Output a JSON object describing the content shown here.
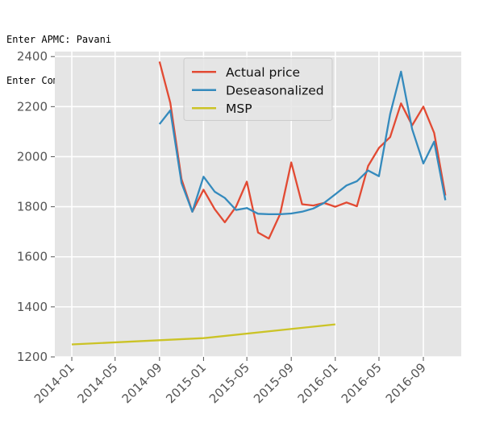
{
  "console": {
    "prompt_apmc": "Enter APMC: Pavani",
    "prompt_commodity": "Enter Commodity within that APMC: paddy-unhusked"
  },
  "chart_data": {
    "type": "line",
    "style": "ggplot",
    "title": "",
    "xlabel": "",
    "ylabel": "",
    "xlim": [
      "2013-11-15",
      "2016-12-15"
    ],
    "ylim": [
      1200,
      2420
    ],
    "x_ticks": [
      "2014-01",
      "2014-05",
      "2014-09",
      "2015-01",
      "2015-05",
      "2015-09",
      "2016-01",
      "2016-05",
      "2016-09"
    ],
    "y_ticks": [
      1200,
      1400,
      1600,
      1800,
      2000,
      2200,
      2400
    ],
    "grid": true,
    "legend_position": "upper center",
    "series": [
      {
        "name": "Actual price",
        "color": "#E24A33",
        "points": [
          [
            "2014-09",
            2380
          ],
          [
            "2014-10",
            2215
          ],
          [
            "2014-11",
            1910
          ],
          [
            "2014-12",
            1780
          ],
          [
            "2015-01",
            1868
          ],
          [
            "2015-02",
            1790
          ],
          [
            "2015-03",
            1738
          ],
          [
            "2015-04",
            1800
          ],
          [
            "2015-05",
            1900
          ],
          [
            "2015-06",
            1697
          ],
          [
            "2015-07",
            1673
          ],
          [
            "2015-08",
            1770
          ],
          [
            "2015-09",
            1977
          ],
          [
            "2015-10",
            1810
          ],
          [
            "2015-11",
            1805
          ],
          [
            "2015-12",
            1815
          ],
          [
            "2016-01",
            1800
          ],
          [
            "2016-02",
            1817
          ],
          [
            "2016-03",
            1802
          ],
          [
            "2016-04",
            1963
          ],
          [
            "2016-05",
            2035
          ],
          [
            "2016-06",
            2078
          ],
          [
            "2016-07",
            2213
          ],
          [
            "2016-08",
            2125
          ],
          [
            "2016-09",
            2200
          ],
          [
            "2016-10",
            2095
          ],
          [
            "2016-11",
            1845
          ]
        ]
      },
      {
        "name": "Deseasonalized",
        "color": "#348ABD",
        "points": [
          [
            "2014-09",
            2130
          ],
          [
            "2014-10",
            2185
          ],
          [
            "2014-11",
            1895
          ],
          [
            "2014-12",
            1780
          ],
          [
            "2015-01",
            1920
          ],
          [
            "2015-02",
            1860
          ],
          [
            "2015-03",
            1835
          ],
          [
            "2015-04",
            1787
          ],
          [
            "2015-05",
            1795
          ],
          [
            "2015-06",
            1772
          ],
          [
            "2015-07",
            1770
          ],
          [
            "2015-08",
            1770
          ],
          [
            "2015-09",
            1773
          ],
          [
            "2015-10",
            1780
          ],
          [
            "2015-11",
            1793
          ],
          [
            "2015-12",
            1815
          ],
          [
            "2016-01",
            1850
          ],
          [
            "2016-02",
            1885
          ],
          [
            "2016-03",
            1902
          ],
          [
            "2016-04",
            1945
          ],
          [
            "2016-05",
            1922
          ],
          [
            "2016-06",
            2170
          ],
          [
            "2016-07",
            2340
          ],
          [
            "2016-08",
            2110
          ],
          [
            "2016-09",
            1973
          ],
          [
            "2016-10",
            2060
          ],
          [
            "2016-11",
            1826
          ]
        ]
      },
      {
        "name": "MSP",
        "color": "#CBC326",
        "points": [
          [
            "2014-01",
            1250
          ],
          [
            "2015-01",
            1275
          ],
          [
            "2016-01",
            1330
          ]
        ]
      }
    ]
  }
}
